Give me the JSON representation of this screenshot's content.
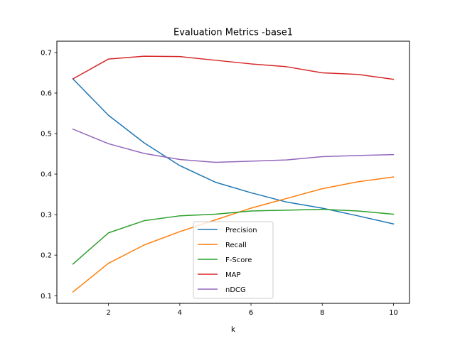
{
  "chart_data": {
    "type": "line",
    "title": "Evaluation Metrics -base1",
    "xlabel": "k",
    "ylabel": "",
    "x": [
      1,
      2,
      3,
      4,
      5,
      6,
      7,
      8,
      9,
      10
    ],
    "xlim": [
      0.55,
      10.45
    ],
    "ylim": [
      0.081,
      0.728
    ],
    "xticks": [
      2,
      4,
      6,
      8,
      10
    ],
    "yticks": [
      0.1,
      0.2,
      0.3,
      0.4,
      0.5,
      0.6,
      0.7
    ],
    "grid": false,
    "legend_position": "lower-center",
    "series": [
      {
        "name": "Precision",
        "color": "#1f77b4",
        "values": [
          0.635,
          0.545,
          0.477,
          0.421,
          0.38,
          0.354,
          0.331,
          0.316,
          0.297,
          0.277
        ]
      },
      {
        "name": "Recall",
        "color": "#ff7f0e",
        "values": [
          0.109,
          0.18,
          0.225,
          0.258,
          0.287,
          0.316,
          0.34,
          0.364,
          0.381,
          0.393
        ]
      },
      {
        "name": "F-Score",
        "color": "#2ca02c",
        "values": [
          0.178,
          0.255,
          0.285,
          0.297,
          0.301,
          0.309,
          0.311,
          0.313,
          0.309,
          0.301
        ]
      },
      {
        "name": "MAP",
        "color": "#d62728",
        "values": [
          0.635,
          0.684,
          0.691,
          0.69,
          0.681,
          0.672,
          0.665,
          0.65,
          0.646,
          0.634
        ]
      },
      {
        "name": "nDCG",
        "color": "#9467bd",
        "values": [
          0.511,
          0.475,
          0.451,
          0.436,
          0.429,
          0.432,
          0.435,
          0.443,
          0.446,
          0.448
        ]
      }
    ]
  }
}
